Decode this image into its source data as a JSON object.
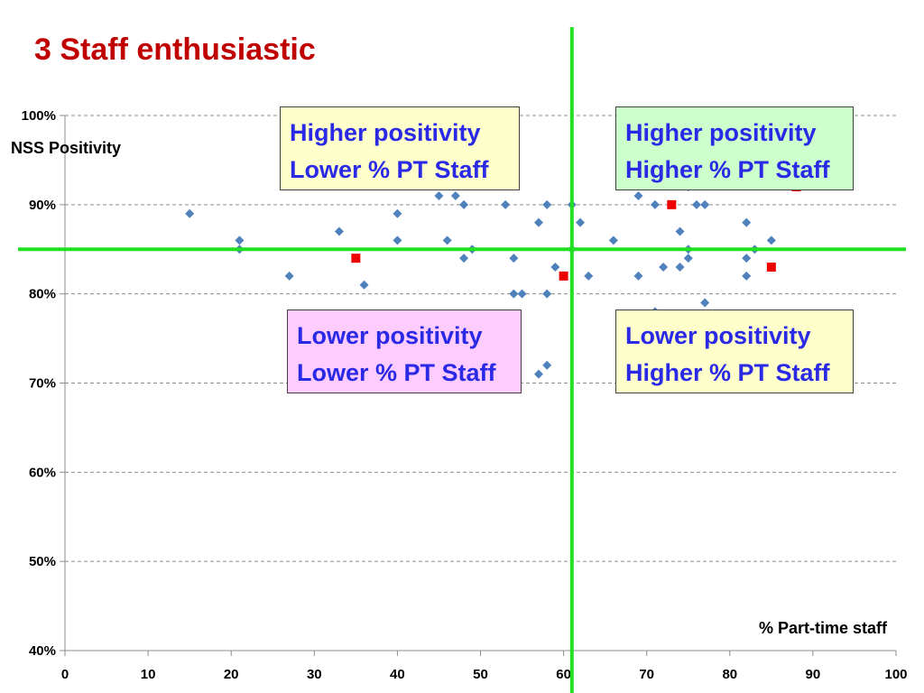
{
  "title": "3 Staff enthusiastic",
  "colors": {
    "title": "#c00000",
    "grid": "#8c8c8c",
    "divider": "#22e022",
    "points": "#4f81bd",
    "highlight": "#ee0000",
    "quadrant_text": "#2a2ae6"
  },
  "quadrants": [
    {
      "key": "top-left",
      "line1": "Higher positivity",
      "line2": "Lower % PT Staff",
      "bg": "#ffffcc"
    },
    {
      "key": "top-right",
      "line1": "Higher positivity",
      "line2": "Higher % PT Staff",
      "bg": "#ccffcc"
    },
    {
      "key": "bottom-left",
      "line1": "Lower positivity",
      "line2": "Lower % PT Staff",
      "bg": "#ffccff"
    },
    {
      "key": "bottom-right",
      "line1": "Lower positivity",
      "line2": "Higher % PT Staff",
      "bg": "#ffffcc"
    }
  ],
  "chart_data": {
    "type": "scatter",
    "xlabel": "% Part-time staff",
    "ylabel": "NSS Positivity",
    "xlim": [
      0,
      100
    ],
    "ylim": [
      40,
      100
    ],
    "x_ticks": [
      0,
      10,
      20,
      30,
      40,
      50,
      60,
      70,
      80,
      90,
      100
    ],
    "x_tick_labels": [
      "0",
      "10",
      "20",
      "30",
      "40",
      "50",
      "60",
      "70",
      "80",
      "90",
      "100"
    ],
    "y_ticks": [
      40,
      50,
      60,
      70,
      80,
      90,
      100
    ],
    "y_tick_labels": [
      "40%",
      "50%",
      "60%",
      "70%",
      "80%",
      "90%",
      "100%"
    ],
    "grid": "horizontal dashed",
    "reference_lines": {
      "x": 61,
      "y": 85
    },
    "series": [
      {
        "marker": "diamond",
        "color": "#4f81bd",
        "points": [
          [
            15,
            89
          ],
          [
            21,
            86
          ],
          [
            21,
            85
          ],
          [
            27,
            82
          ],
          [
            33,
            87
          ],
          [
            36,
            81
          ],
          [
            40,
            89
          ],
          [
            40,
            86
          ],
          [
            45,
            91
          ],
          [
            46,
            86
          ],
          [
            47,
            91
          ],
          [
            48,
            90
          ],
          [
            48,
            84
          ],
          [
            49,
            85
          ],
          [
            53,
            90
          ],
          [
            54,
            84
          ],
          [
            54,
            80
          ],
          [
            55,
            80
          ],
          [
            57,
            88
          ],
          [
            57,
            71
          ],
          [
            58,
            90
          ],
          [
            58,
            80
          ],
          [
            58,
            72
          ],
          [
            59,
            83
          ],
          [
            61,
            90
          ],
          [
            61,
            85
          ],
          [
            62,
            88
          ],
          [
            63,
            82
          ],
          [
            66,
            86
          ],
          [
            69,
            91
          ],
          [
            69,
            82
          ],
          [
            71,
            90
          ],
          [
            71,
            78
          ],
          [
            72,
            83
          ],
          [
            74,
            87
          ],
          [
            74,
            83
          ],
          [
            75,
            92
          ],
          [
            75,
            85
          ],
          [
            75,
            84
          ],
          [
            76,
            90
          ],
          [
            77,
            90
          ],
          [
            77,
            79
          ],
          [
            82,
            88
          ],
          [
            82,
            84
          ],
          [
            82,
            82
          ],
          [
            83,
            85
          ],
          [
            85,
            86
          ]
        ]
      },
      {
        "marker": "square",
        "color": "#ee0000",
        "points": [
          [
            35,
            84
          ],
          [
            60,
            82
          ],
          [
            73,
            90
          ],
          [
            85,
            83
          ],
          [
            88,
            92
          ]
        ]
      }
    ]
  }
}
